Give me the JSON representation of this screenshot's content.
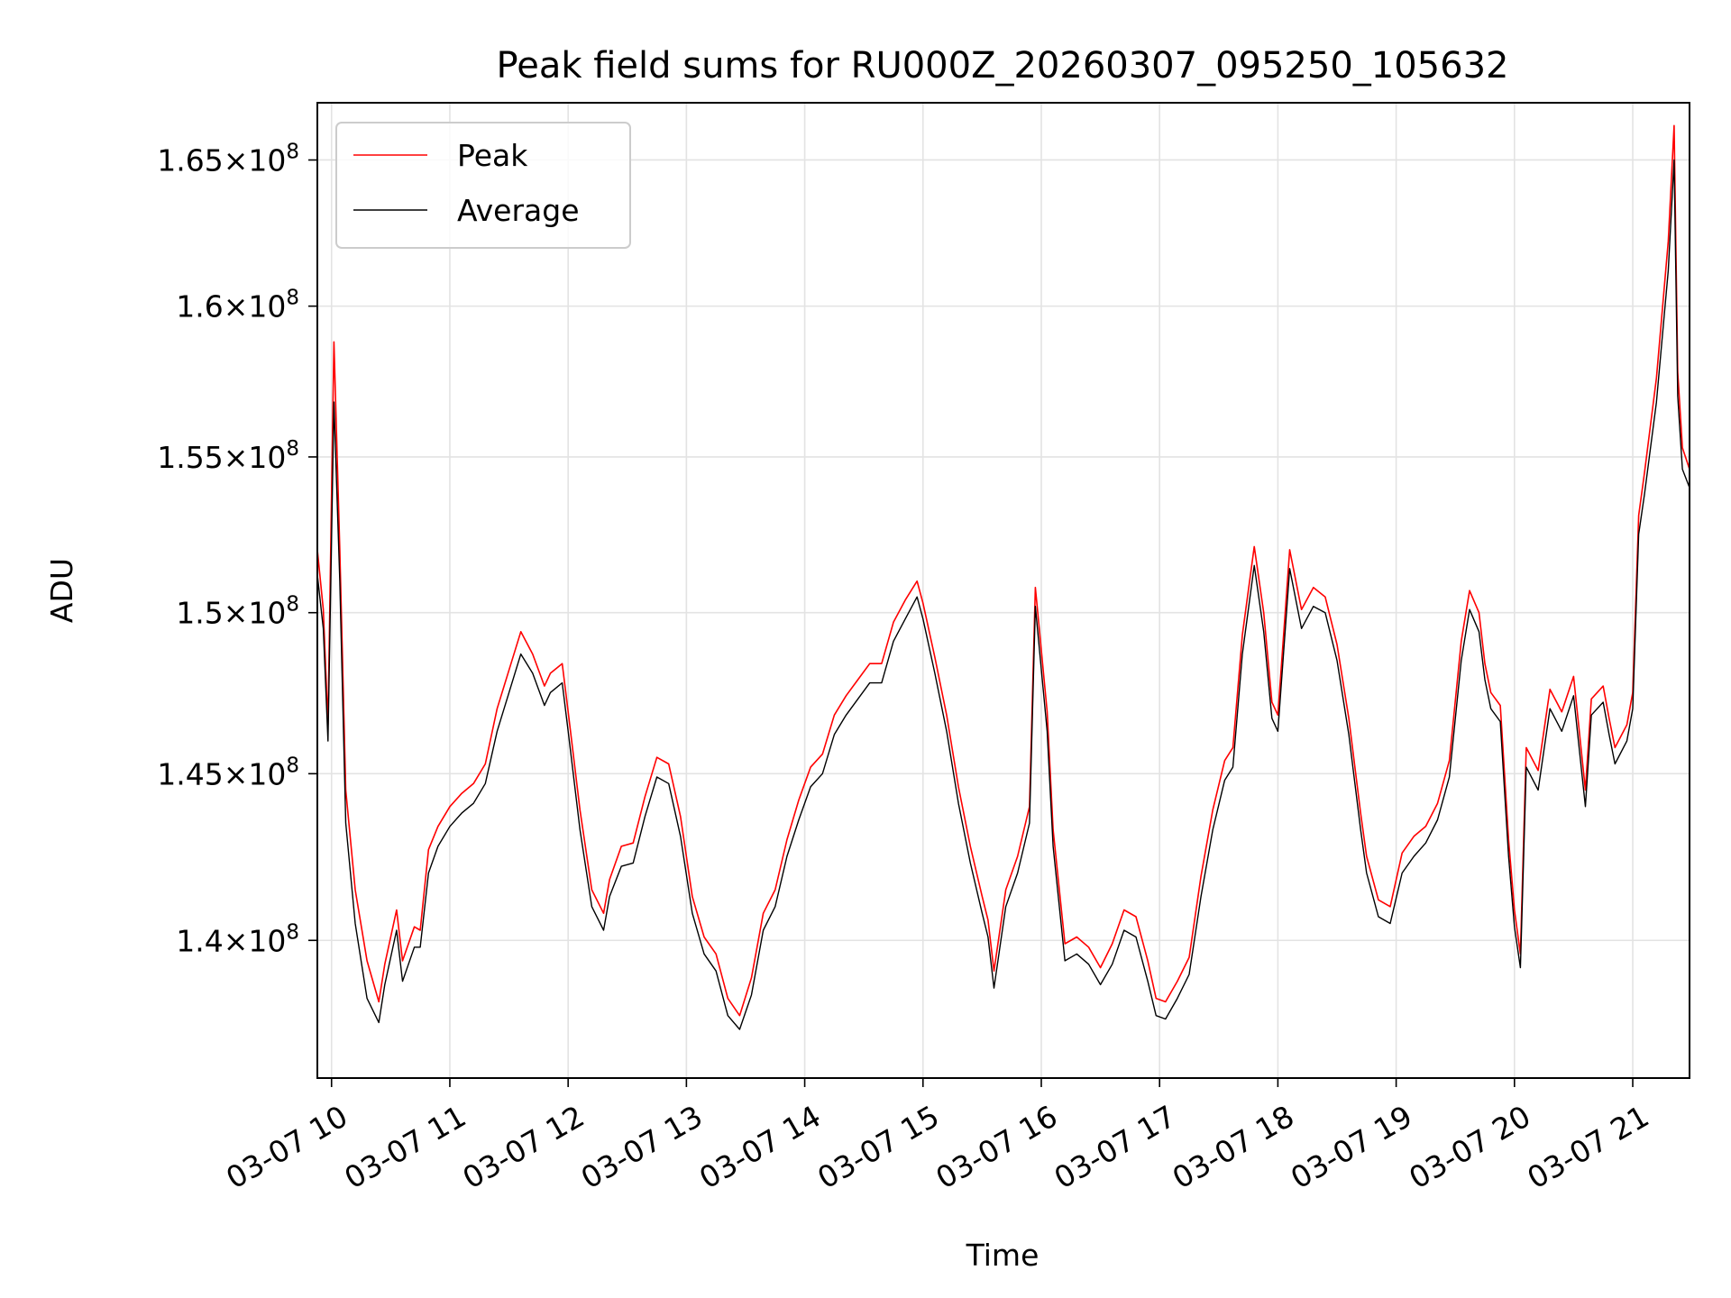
{
  "chart_data": {
    "type": "line",
    "title": "Peak field sums for RU000Z_20260307_095250_105632",
    "xlabel": "Time",
    "ylabel": "ADU",
    "x_tick_labels": [
      "03-07 10",
      "03-07 11",
      "03-07 12",
      "03-07 13",
      "03-07 14",
      "03-07 15",
      "03-07 16",
      "03-07 17",
      "03-07 18",
      "03-07 19",
      "03-07 20",
      "03-07 21"
    ],
    "x_ticks_hours": [
      10,
      11,
      12,
      13,
      14,
      15,
      16,
      17,
      18,
      19,
      20,
      21
    ],
    "xlim_hours": [
      9.88,
      21.48
    ],
    "y_tick_values": [
      140000000,
      145000000,
      150000000,
      155000000,
      160000000,
      165000000
    ],
    "y_tick_labels": [
      {
        "mant": "1.4",
        "exp": "8"
      },
      {
        "mant": "1.45",
        "exp": "8"
      },
      {
        "mant": "1.5",
        "exp": "8"
      },
      {
        "mant": "1.55",
        "exp": "8"
      },
      {
        "mant": "1.6",
        "exp": "8"
      },
      {
        "mant": "1.65",
        "exp": "8"
      }
    ],
    "ylim": [
      136000000,
      167000000
    ],
    "y_scale": "log",
    "grid": true,
    "legend_position": "upper-left",
    "series": [
      {
        "name": "Peak",
        "color": "#ff0000"
      },
      {
        "name": "Average",
        "color": "#000000"
      }
    ],
    "x_hours": [
      9.88,
      9.93,
      9.97,
      10.02,
      10.07,
      10.12,
      10.2,
      10.3,
      10.4,
      10.45,
      10.55,
      10.6,
      10.7,
      10.75,
      10.82,
      10.9,
      11.0,
      11.1,
      11.2,
      11.3,
      11.4,
      11.5,
      11.6,
      11.7,
      11.8,
      11.85,
      11.95,
      12.0,
      12.1,
      12.2,
      12.3,
      12.35,
      12.45,
      12.55,
      12.65,
      12.75,
      12.85,
      12.95,
      13.05,
      13.15,
      13.25,
      13.35,
      13.45,
      13.55,
      13.65,
      13.75,
      13.85,
      13.95,
      14.05,
      14.15,
      14.25,
      14.35,
      14.45,
      14.55,
      14.65,
      14.75,
      14.85,
      14.95,
      15.0,
      15.1,
      15.2,
      15.3,
      15.4,
      15.5,
      15.55,
      15.6,
      15.7,
      15.8,
      15.9,
      15.95,
      16.05,
      16.1,
      16.2,
      16.3,
      16.4,
      16.5,
      16.6,
      16.7,
      16.8,
      16.9,
      16.97,
      17.05,
      17.15,
      17.25,
      17.35,
      17.45,
      17.55,
      17.62,
      17.7,
      17.8,
      17.88,
      17.95,
      18.0,
      18.1,
      18.2,
      18.3,
      18.4,
      18.5,
      18.6,
      18.7,
      18.75,
      18.85,
      18.95,
      19.05,
      19.15,
      19.25,
      19.35,
      19.45,
      19.55,
      19.62,
      19.7,
      19.75,
      19.8,
      19.88,
      19.95,
      20.0,
      20.05,
      20.1,
      20.2,
      20.3,
      20.4,
      20.5,
      20.6,
      20.65,
      20.75,
      20.8,
      20.85,
      20.95,
      21.0,
      21.05,
      21.1,
      21.2,
      21.3,
      21.35,
      21.38,
      21.42,
      21.48
    ],
    "average": [
      151200000,
      149500000,
      146000000,
      156800000,
      151000000,
      143500000,
      140500000,
      138300000,
      137600000,
      138700000,
      140300000,
      138800000,
      139800000,
      139800000,
      142000000,
      142800000,
      143400000,
      143800000,
      144100000,
      144700000,
      146300000,
      147500000,
      148700000,
      148100000,
      147100000,
      147500000,
      147800000,
      146300000,
      143300000,
      141000000,
      140300000,
      141300000,
      142200000,
      142300000,
      143700000,
      144900000,
      144700000,
      143100000,
      140800000,
      139600000,
      139100000,
      137800000,
      137400000,
      138400000,
      140300000,
      141000000,
      142500000,
      143600000,
      144600000,
      145000000,
      146200000,
      146800000,
      147300000,
      147800000,
      147800000,
      149100000,
      149800000,
      150500000,
      149800000,
      148100000,
      146300000,
      144100000,
      142300000,
      140800000,
      140100000,
      138600000,
      141000000,
      142000000,
      143500000,
      150200000,
      146300000,
      142800000,
      139400000,
      139600000,
      139300000,
      138700000,
      139300000,
      140300000,
      140100000,
      138800000,
      137800000,
      137700000,
      138300000,
      139000000,
      141300000,
      143300000,
      144800000,
      145200000,
      148700000,
      151500000,
      149400000,
      146700000,
      146300000,
      151400000,
      149500000,
      150200000,
      150000000,
      148500000,
      146200000,
      143300000,
      142000000,
      140700000,
      140500000,
      142000000,
      142500000,
      142900000,
      143600000,
      144900000,
      148500000,
      150100000,
      149400000,
      147900000,
      147000000,
      146600000,
      142500000,
      140400000,
      139200000,
      145200000,
      144500000,
      147000000,
      146300000,
      147400000,
      144000000,
      146800000,
      147200000,
      146200000,
      145300000,
      146000000,
      147000000,
      152500000,
      153800000,
      156800000,
      161200000,
      165000000,
      157000000,
      154600000,
      154000000
    ],
    "peak": [
      152000000,
      150100000,
      146500000,
      158800000,
      152000000,
      144500000,
      141500000,
      139400000,
      138200000,
      139300000,
      140900000,
      139400000,
      140400000,
      140300000,
      142700000,
      143400000,
      144000000,
      144400000,
      144700000,
      145300000,
      147000000,
      148200000,
      149400000,
      148700000,
      147700000,
      148100000,
      148400000,
      146900000,
      143900000,
      141500000,
      140800000,
      141800000,
      142800000,
      142900000,
      144300000,
      145500000,
      145300000,
      143700000,
      141300000,
      140100000,
      139600000,
      138300000,
      137800000,
      138900000,
      140800000,
      141500000,
      143000000,
      144200000,
      145200000,
      145600000,
      146800000,
      147400000,
      147900000,
      148400000,
      148400000,
      149700000,
      150400000,
      151000000,
      150300000,
      148600000,
      146800000,
      144600000,
      142800000,
      141300000,
      140600000,
      139100000,
      141500000,
      142500000,
      144000000,
      150800000,
      146900000,
      143300000,
      139900000,
      140100000,
      139800000,
      139200000,
      139900000,
      140900000,
      140700000,
      139400000,
      138300000,
      138200000,
      138800000,
      139500000,
      141900000,
      143900000,
      145400000,
      145800000,
      149300000,
      152100000,
      150000000,
      147200000,
      146800000,
      152000000,
      150100000,
      150800000,
      150500000,
      149000000,
      146700000,
      143800000,
      142500000,
      141200000,
      141000000,
      142600000,
      143100000,
      143400000,
      144100000,
      145400000,
      149100000,
      150700000,
      150000000,
      148400000,
      147500000,
      147100000,
      143000000,
      140900000,
      139600000,
      145800000,
      145100000,
      147600000,
      146900000,
      148000000,
      144500000,
      147300000,
      147700000,
      146700000,
      145800000,
      146500000,
      147500000,
      153100000,
      154500000,
      157600000,
      162200000,
      166200000,
      157800000,
      155300000,
      154600000
    ]
  }
}
